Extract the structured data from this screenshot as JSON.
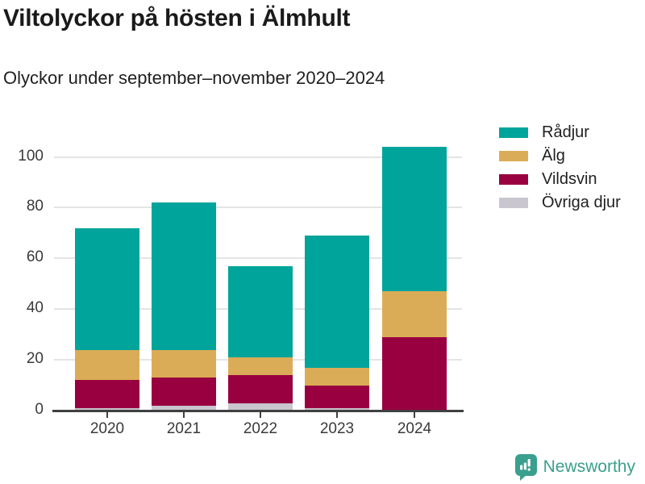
{
  "header": {
    "title": "Viltolyckor på hösten i Älmhult",
    "subtitle": "Olyckor under september–november 2020–2024"
  },
  "chart_data": {
    "type": "bar",
    "stacked": true,
    "title": "Viltolyckor på hösten i Älmhult",
    "subtitle": "Olyckor under september–november 2020–2024",
    "categories": [
      "2020",
      "2021",
      "2022",
      "2023",
      "2024"
    ],
    "series": [
      {
        "name": "Rådjur",
        "color": "#00a49b",
        "values": [
          48,
          58,
          36,
          52,
          57
        ]
      },
      {
        "name": "Älg",
        "color": "#dbac57",
        "values": [
          12,
          11,
          7,
          7,
          18
        ]
      },
      {
        "name": "Vildsvin",
        "color": "#990040",
        "values": [
          11,
          11,
          11,
          9,
          29
        ]
      },
      {
        "name": "Övriga djur",
        "color": "#c9c6cf",
        "values": [
          1,
          2,
          3,
          1,
          0
        ]
      }
    ],
    "stack_order": "last-series-at-bottom",
    "totals": [
      72,
      82,
      57,
      69,
      104
    ],
    "xlabel": "",
    "ylabel": "",
    "yticks": [
      0,
      20,
      40,
      60,
      80,
      100
    ],
    "ylim": [
      0,
      110
    ],
    "grid": "horizontal",
    "legend_position": "right",
    "colors": {
      "gridline": "#e4e4e4",
      "axis": "#404040",
      "tick_text": "#3a3a3a",
      "title_text": "#1a1a1a"
    }
  },
  "footer": {
    "brand": "Newsworthy",
    "logo_color": "#3aa08d",
    "logo_icon": "bar-chart-speech-bubble-icon"
  }
}
